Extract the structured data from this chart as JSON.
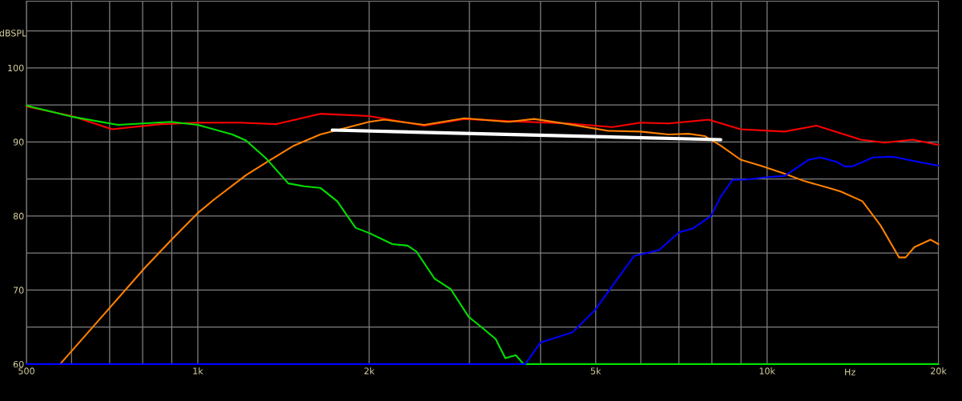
{
  "chart_data": {
    "type": "line",
    "xlabel": "Hz",
    "ylabel": "dBSPL",
    "log": "x",
    "grid": true,
    "xlim": [
      500,
      20000
    ],
    "ylim": [
      60,
      109
    ],
    "xticks": [
      500,
      {
        "value": 600,
        "label": null
      },
      {
        "value": 700,
        "label": null
      },
      {
        "value": 800,
        "label": null
      },
      {
        "value": 900,
        "label": null
      },
      {
        "value": 1000,
        "label": "1k"
      },
      {
        "value": 2000,
        "label": "2k"
      },
      {
        "value": 3000,
        "label": null
      },
      {
        "value": 4000,
        "label": null
      },
      {
        "value": 5000,
        "label": "5k"
      },
      {
        "value": 6000,
        "label": null
      },
      {
        "value": 7000,
        "label": null
      },
      {
        "value": 8000,
        "label": null
      },
      {
        "value": 9000,
        "label": null
      },
      {
        "value": 10000,
        "label": "10k"
      },
      {
        "value": 20000,
        "label": "20k"
      }
    ],
    "yticks": [
      60,
      {
        "value": 65,
        "label": null
      },
      70,
      {
        "value": 75,
        "label": null
      },
      80,
      {
        "value": 85,
        "label": null
      },
      90,
      {
        "value": 95,
        "label": null
      },
      100,
      {
        "value": 105,
        "label": null
      }
    ],
    "series": [
      {
        "color": "#ff0000",
        "x": [
          500,
          601,
          707,
          859,
          1000,
          1187,
          1374,
          1641,
          2000,
          2500,
          2940,
          3514,
          4478,
          5350,
          5993,
          6714,
          7896,
          8984,
          10736,
          12219,
          14606,
          16093,
          18030,
          20000
        ],
        "values": [
          94.8,
          93.5,
          91.7,
          92.4,
          92.6,
          92.6,
          92.4,
          93.8,
          93.5,
          92.2,
          93.1,
          92.8,
          92.5,
          92.0,
          92.6,
          92.5,
          93.0,
          91.7,
          91.4,
          92.2,
          90.3,
          89.9,
          90.3,
          89.6
        ]
      },
      {
        "color": "#ff8000",
        "x": [
          573,
          652,
          805,
          899,
          1000,
          1067,
          1215,
          1330,
          1475,
          1641,
          2000,
          2127,
          2500,
          2940,
          3514,
          3897,
          4478,
          5265,
          5993,
          6714,
          7282,
          7769,
          8289,
          8984,
          9743,
          10736,
          11642,
          12830,
          13470,
          14703,
          15833,
          17060,
          17510,
          18146,
          19365,
          20000
        ],
        "values": [
          60,
          64.9,
          72.9,
          76.8,
          80.4,
          82.2,
          85.5,
          87.4,
          89.5,
          91.0,
          92.7,
          93.0,
          92.3,
          93.2,
          92.7,
          93.1,
          92.4,
          91.5,
          91.4,
          91.0,
          91.1,
          90.8,
          89.5,
          87.6,
          86.8,
          85.7,
          84.7,
          83.8,
          83.3,
          82.0,
          78.7,
          74.4,
          74.4,
          75.8,
          76.8,
          76.2
        ]
      },
      {
        "color": "#00e000",
        "x": [
          500,
          601,
          724,
          896,
          1000,
          1150,
          1215,
          1321,
          1442,
          1538,
          1641,
          1757,
          1893,
          2000,
          2197,
          2336,
          2421,
          2608,
          2783,
          2989,
          3137,
          3336,
          3469,
          3618,
          3736,
          20000
        ],
        "values": [
          94.9,
          93.4,
          92.3,
          92.7,
          92.3,
          91.0,
          90.2,
          87.7,
          84.4,
          84.0,
          83.8,
          82.0,
          78.4,
          77.7,
          76.2,
          76.0,
          75.2,
          71.5,
          70.1,
          66.4,
          65.1,
          63.4,
          60.8,
          61.2,
          60,
          60
        ]
      },
      {
        "color": "#0000ff",
        "x": [
          500,
          3760,
          3999,
          4552,
          5000,
          5421,
          5839,
          6458,
          7005,
          7399,
          7973,
          8289,
          8700,
          9131,
          10227,
          10736,
          11829,
          12418,
          13256,
          13690,
          14140,
          15336,
          16619,
          18751,
          20000
        ],
        "values": [
          60,
          60,
          62.9,
          64.3,
          67.4,
          71.2,
          74.6,
          75.4,
          77.8,
          78.3,
          80.0,
          82.6,
          84.9,
          84.9,
          85.3,
          85.4,
          87.6,
          87.9,
          87.3,
          86.7,
          86.7,
          87.9,
          88.0,
          87.2,
          86.8
        ]
      },
      {
        "color": "#ffffff",
        "x": [
          1723,
          8289
        ],
        "values": [
          91.6,
          90.3
        ]
      }
    ]
  }
}
